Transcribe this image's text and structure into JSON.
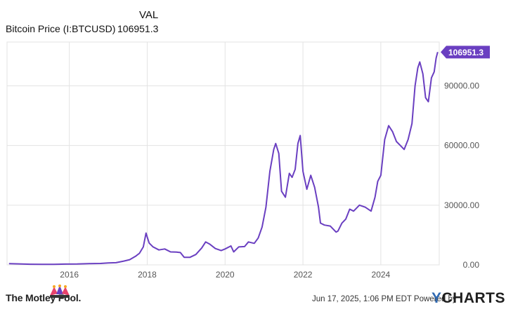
{
  "legend": {
    "header": "VAL",
    "series_name": "Bitcoin Price (I:BTCUSD)",
    "series_value": "106951.3"
  },
  "footer": {
    "brand": "The Motley Fool.",
    "timestamp": "Jun 17, 2025, 1:06 PM EDT Powered by",
    "logo_y": "Y",
    "logo_rest": "CHARTS"
  },
  "colors": {
    "line": "#6a3fc1",
    "grid": "#e3e3e3",
    "axis_text": "#555555",
    "label_bg": "#6a3fc1"
  },
  "chart_data": {
    "type": "line",
    "title": "",
    "xlabel": "",
    "ylabel": "",
    "grid": true,
    "y_axis_side": "right",
    "xlim": [
      2014.4,
      2025.5
    ],
    "ylim": [
      0,
      112000
    ],
    "x_ticks": [
      2016,
      2018,
      2020,
      2022,
      2024
    ],
    "x_tick_labels": [
      "2016",
      "2018",
      "2020",
      "2022",
      "2024"
    ],
    "y_ticks": [
      0,
      30000,
      60000,
      90000
    ],
    "y_tick_labels": [
      "0.00",
      "30000.00",
      "60000.00",
      "90000.00"
    ],
    "last_value_label": "106951.3",
    "series": [
      {
        "name": "Bitcoin Price (I:BTCUSD)",
        "x": [
          2014.45,
          2014.7,
          2015.0,
          2015.3,
          2015.6,
          2015.9,
          2016.2,
          2016.5,
          2016.8,
          2017.0,
          2017.2,
          2017.4,
          2017.55,
          2017.7,
          2017.8,
          2017.9,
          2017.97,
          2018.0,
          2018.05,
          2018.15,
          2018.3,
          2018.45,
          2018.6,
          2018.75,
          2018.85,
          2018.95,
          2019.1,
          2019.25,
          2019.4,
          2019.5,
          2019.6,
          2019.75,
          2019.9,
          2020.0,
          2020.15,
          2020.22,
          2020.35,
          2020.5,
          2020.6,
          2020.75,
          2020.85,
          2020.95,
          2021.05,
          2021.15,
          2021.25,
          2021.3,
          2021.38,
          2021.45,
          2021.55,
          2021.65,
          2021.72,
          2021.8,
          2021.87,
          2021.93,
          2022.0,
          2022.1,
          2022.2,
          2022.3,
          2022.4,
          2022.45,
          2022.55,
          2022.7,
          2022.85,
          2022.9,
          2023.0,
          2023.1,
          2023.2,
          2023.3,
          2023.45,
          2023.6,
          2023.75,
          2023.85,
          2023.92,
          2024.0,
          2024.1,
          2024.2,
          2024.3,
          2024.4,
          2024.5,
          2024.6,
          2024.7,
          2024.8,
          2024.88,
          2024.95,
          2025.0,
          2025.08,
          2025.15,
          2025.22,
          2025.3,
          2025.37,
          2025.42,
          2025.46
        ],
        "values": [
          600,
          480,
          320,
          250,
          270,
          380,
          420,
          650,
          700,
          950,
          1100,
          1900,
          2600,
          4300,
          5800,
          9000,
          16000,
          14000,
          11000,
          9000,
          7500,
          8000,
          6500,
          6400,
          6200,
          3800,
          3800,
          5200,
          8500,
          11500,
          10500,
          8200,
          7200,
          8000,
          9500,
          6500,
          9000,
          9200,
          11500,
          10800,
          13500,
          19000,
          29000,
          47000,
          58000,
          61000,
          56000,
          37000,
          34000,
          46000,
          44000,
          48000,
          61000,
          65000,
          47000,
          38000,
          45000,
          39000,
          29000,
          21000,
          20000,
          19500,
          16500,
          17000,
          21000,
          23000,
          28000,
          27000,
          30000,
          29000,
          27000,
          34000,
          42000,
          45000,
          63000,
          70000,
          67000,
          62000,
          60000,
          58000,
          63000,
          71000,
          90000,
          99000,
          102000,
          96000,
          84000,
          82000,
          94000,
          97000,
          104000,
          106951.3
        ]
      }
    ]
  }
}
